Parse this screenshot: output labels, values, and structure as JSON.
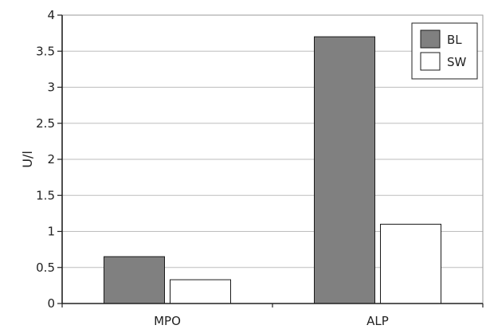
{
  "chart_data": {
    "type": "bar",
    "title": "",
    "xlabel": "",
    "ylabel": "U/l",
    "ylim": [
      0,
      4
    ],
    "yticks": [
      0,
      0.5,
      1,
      1.5,
      2,
      2.5,
      3,
      3.5,
      4
    ],
    "ytick_labels": [
      "0",
      "0.5",
      "1",
      "1.5",
      "2",
      "2.5",
      "3",
      "3.5",
      "4"
    ],
    "categories": [
      "MPO",
      "ALP"
    ],
    "series": [
      {
        "name": "BL",
        "values": [
          0.65,
          3.7
        ],
        "color": "#808080"
      },
      {
        "name": "SW",
        "values": [
          0.33,
          1.1
        ],
        "color": "#ffffff"
      }
    ],
    "grid": true,
    "legend": {
      "placement": "top-right"
    }
  }
}
